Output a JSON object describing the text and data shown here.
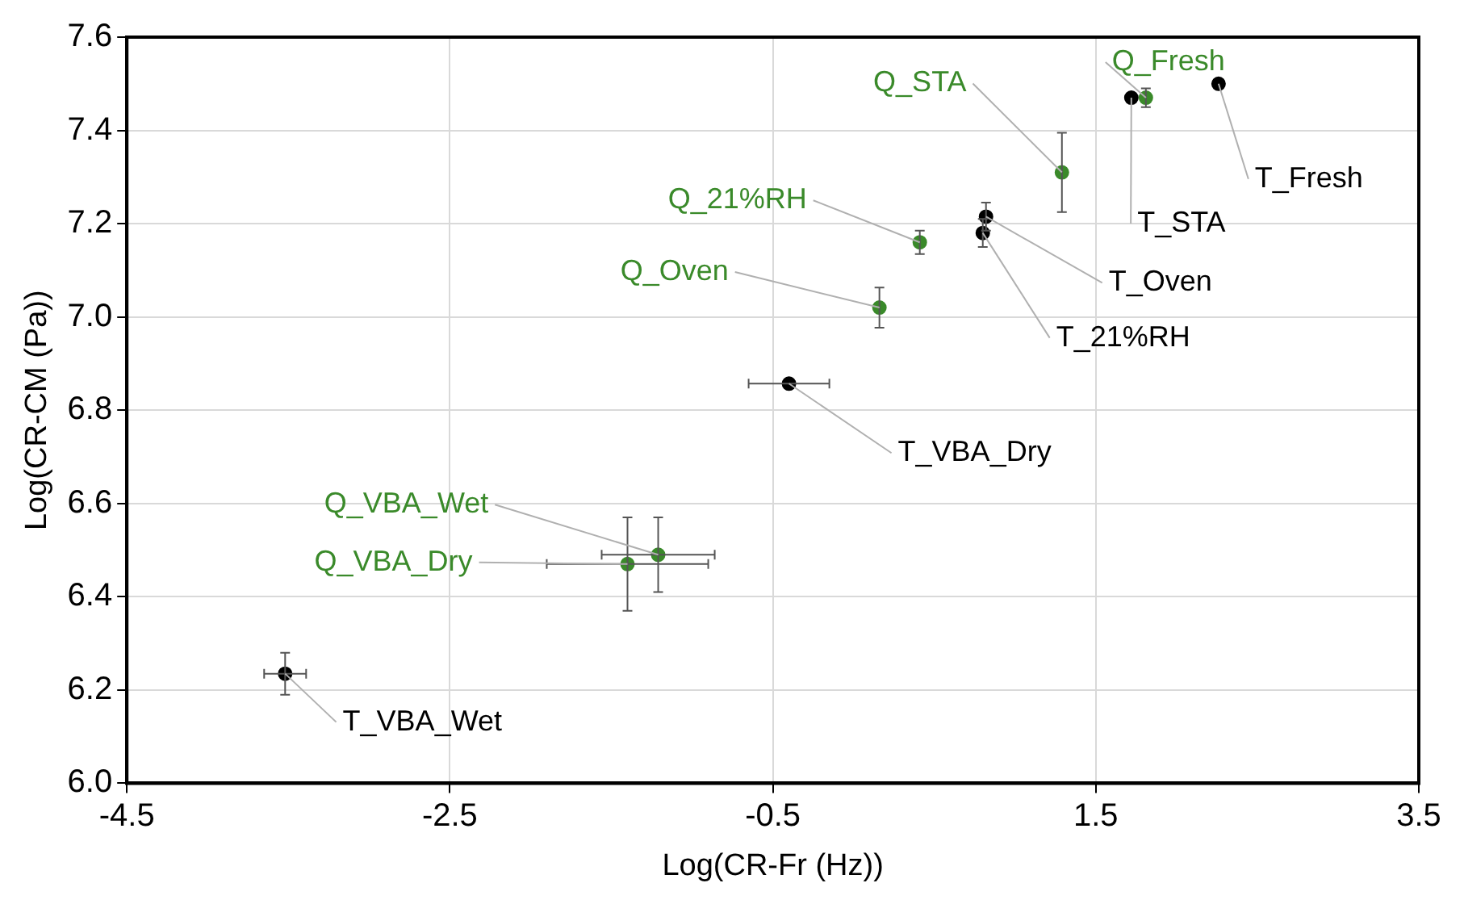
{
  "chart_data": {
    "type": "scatter",
    "xlabel": "Log(CR-Fr (Hz))",
    "ylabel": "Log(CR-CM (Pa))",
    "xlim": [
      -4.5,
      3.5
    ],
    "xticks": [
      -4.5,
      -2.5,
      -0.5,
      1.5,
      3.5
    ],
    "ylim": [
      6.0,
      7.6
    ],
    "yticks": [
      {
        "value": 6.0,
        "label": "6.0"
      },
      6.2,
      6.4,
      6.6,
      6.8,
      {
        "value": 7.0,
        "label": "7.0"
      },
      7.2,
      7.4,
      7.6
    ],
    "grid": true,
    "marker": "circle",
    "legend": false,
    "series": [
      {
        "name": "Q_Fresh",
        "color": "#3a8a2a",
        "x": [
          1.81
        ],
        "values": [
          7.47
        ],
        "errors": [
          0.02
        ],
        "xerrors": [
          null
        ]
      },
      {
        "name": "T_Fresh",
        "color": "#000000",
        "x": [
          2.26
        ],
        "values": [
          7.5
        ],
        "errors": [
          null
        ],
        "xerrors": [
          null
        ]
      },
      {
        "name": "T_STA",
        "color": "#000000",
        "x": [
          1.72
        ],
        "values": [
          7.47
        ],
        "errors": [
          null
        ],
        "xerrors": [
          null
        ]
      },
      {
        "name": "Q_STA",
        "color": "#3a8a2a",
        "x": [
          1.29
        ],
        "values": [
          7.31
        ],
        "errors": [
          0.085
        ],
        "xerrors": [
          null
        ]
      },
      {
        "name": "T_Oven",
        "color": "#000000",
        "x": [
          0.82
        ],
        "values": [
          7.215
        ],
        "errors": [
          0.03
        ],
        "xerrors": [
          null
        ]
      },
      {
        "name": "T_21%RH",
        "color": "#000000",
        "x": [
          0.8
        ],
        "values": [
          7.18
        ],
        "errors": [
          0.03
        ],
        "xerrors": [
          null
        ]
      },
      {
        "name": "Q_21%RH",
        "color": "#3a8a2a",
        "x": [
          0.41
        ],
        "values": [
          7.16
        ],
        "errors": [
          0.025
        ],
        "xerrors": [
          null
        ]
      },
      {
        "name": "Q_Oven",
        "color": "#3a8a2a",
        "x": [
          0.16
        ],
        "values": [
          7.02
        ],
        "errors": [
          0.043
        ],
        "xerrors": [
          null
        ]
      },
      {
        "name": "T_VBA_Dry",
        "color": "#000000",
        "x": [
          -0.4
        ],
        "values": [
          6.857
        ],
        "errors": [
          null
        ],
        "xerrors": [
          0.25
        ]
      },
      {
        "name": "Q_VBA_Wet",
        "color": "#3a8a2a",
        "x": [
          -1.21
        ],
        "values": [
          6.49
        ],
        "errors": [
          0.08
        ],
        "xerrors": [
          0.35
        ]
      },
      {
        "name": "Q_VBA_Dry",
        "color": "#3a8a2a",
        "x": [
          -1.4
        ],
        "values": [
          6.47
        ],
        "errors": [
          0.1
        ],
        "xerrors": [
          0.5
        ]
      },
      {
        "name": "T_VBA_Wet",
        "color": "#000000",
        "x": [
          -3.52
        ],
        "values": [
          6.235
        ],
        "errors": [
          0.045
        ],
        "xerrors": [
          0.13
        ]
      }
    ]
  }
}
